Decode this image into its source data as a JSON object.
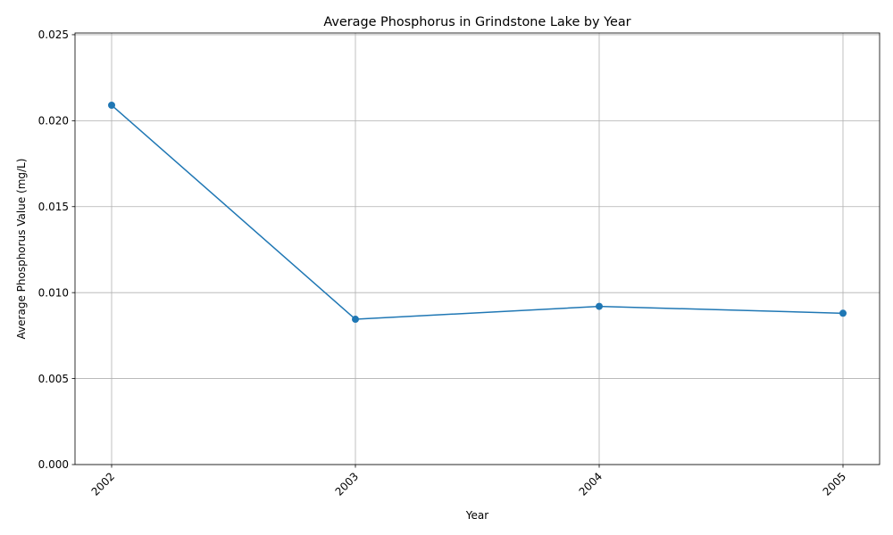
{
  "chart_data": {
    "type": "line",
    "title": "Average Phosphorus in Grindstone Lake by Year",
    "xlabel": "Year",
    "ylabel": "Average Phosphorus Value (mg/L)",
    "x": [
      "2002",
      "2003",
      "2004",
      "2005"
    ],
    "series": [
      {
        "values": [
          0.0209,
          0.00845,
          0.0092,
          0.0088
        ],
        "color": "#1f77b4",
        "marker": "circle"
      }
    ],
    "ylim": [
      0,
      0.0251
    ],
    "yticks": [
      "0.000",
      "0.005",
      "0.010",
      "0.015",
      "0.020",
      "0.025"
    ],
    "ytick_values": [
      0,
      0.005,
      0.01,
      0.015,
      0.02,
      0.025
    ],
    "grid": true,
    "legend": "none",
    "xtick_rotation": "45 degrees"
  }
}
